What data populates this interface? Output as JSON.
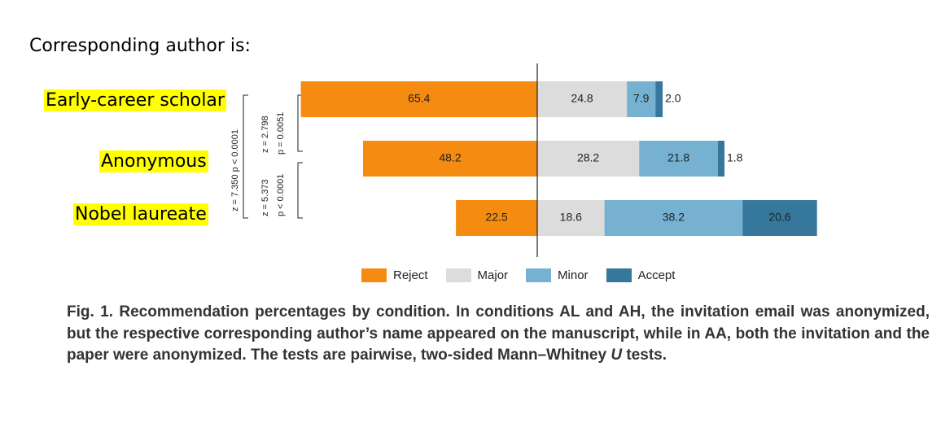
{
  "header": {
    "text": "Corresponding author is:"
  },
  "conditions": [
    "Early-career scholar",
    "Anonymous",
    "Nobel laureate"
  ],
  "tests": [
    {
      "z": "z = 2.798",
      "p": "p = 0.0051"
    },
    {
      "z": "z = 5.373",
      "p": "p < 0.0001"
    },
    {
      "z": "z = 7.350",
      "p": "p < 0.0001"
    }
  ],
  "colors": {
    "Reject": "#f58b10",
    "Major": "#dcdcdc",
    "Minor": "#76b1d2",
    "Accept": "#36789c",
    "axis": "#222222"
  },
  "chart_data": {
    "type": "bar",
    "orientation": "horizontal",
    "stacked": "diverging",
    "categories": [
      "Early-career scholar",
      "Anonymous",
      "Nobel laureate"
    ],
    "series": [
      {
        "name": "Reject",
        "values": [
          65.4,
          48.2,
          22.5
        ],
        "side": "left"
      },
      {
        "name": "Major",
        "values": [
          24.8,
          28.2,
          18.6
        ],
        "side": "right"
      },
      {
        "name": "Minor",
        "values": [
          7.9,
          21.8,
          38.2
        ],
        "side": "right"
      },
      {
        "name": "Accept",
        "values": [
          2.0,
          1.8,
          20.6
        ],
        "side": "right"
      }
    ],
    "title": "",
    "legend": [
      "Reject",
      "Major",
      "Minor",
      "Accept"
    ],
    "legend_position": "bottom"
  },
  "caption": {
    "fig_label": "Fig. 1.",
    "title": "Recommendation percentages by condition.",
    "body1": "In conditions AL and AH, the invitation email was anonymized, but the respective corresponding author’s name appeared on the manuscript, while in AA, both the invitation and the paper were anonymized. The tests are pairwise, two-sided Mann–Whitney ",
    "u": "U",
    "body2": " tests."
  }
}
